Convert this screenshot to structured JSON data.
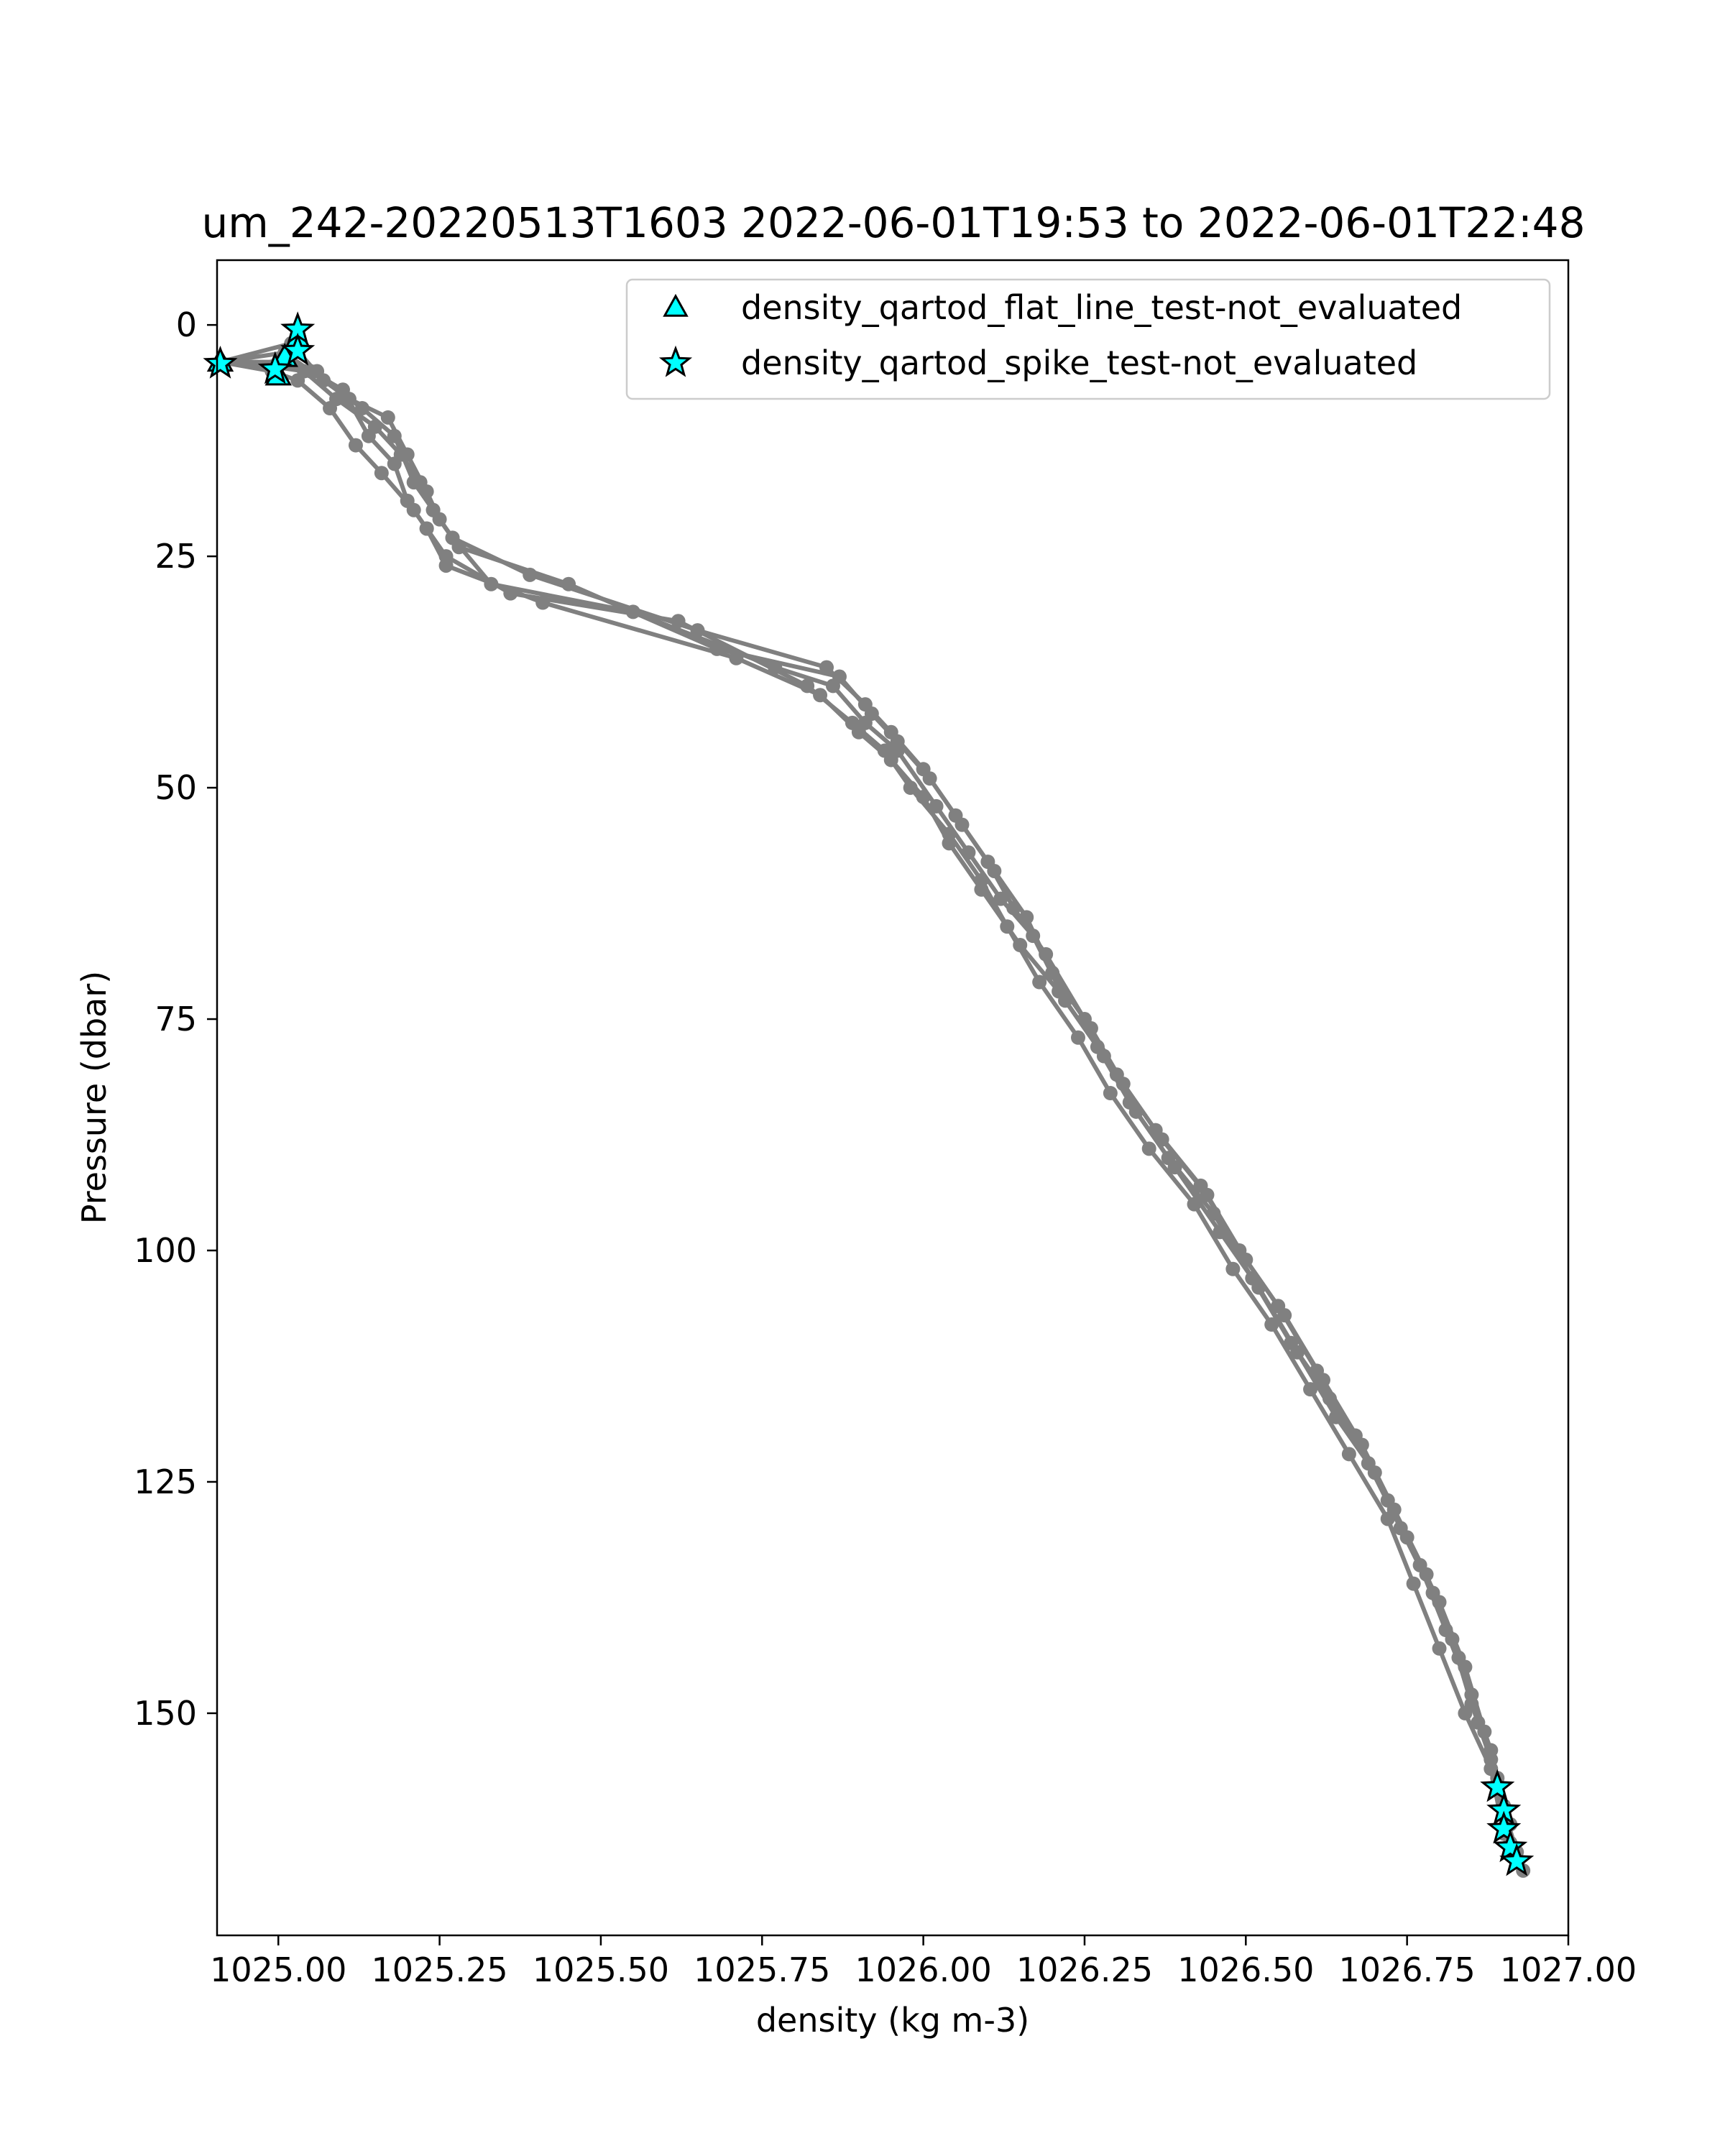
{
  "chart_data": {
    "type": "line",
    "title": "um_242-20220513T1603 2022-06-01T19:53 to 2022-06-01T22:48",
    "xlabel": "density (kg m-3)",
    "ylabel": "Pressure (dbar)",
    "xlim": [
      1024.905,
      1027.0
    ],
    "ylim": [
      174,
      -7
    ],
    "y_inverted": true,
    "x_ticks": [
      1025.0,
      1025.25,
      1025.5,
      1025.75,
      1026.0,
      1026.25,
      1026.5,
      1026.75,
      1027.0
    ],
    "x_tick_labels": [
      "1025.00",
      "1025.25",
      "1025.50",
      "1025.75",
      "1026.00",
      "1026.25",
      "1026.50",
      "1026.75",
      "1027.00"
    ],
    "y_ticks": [
      0,
      25,
      50,
      75,
      100,
      125,
      150
    ],
    "y_tick_labels": [
      "0",
      "25",
      "50",
      "75",
      "100",
      "125",
      "150"
    ],
    "grid": false,
    "legend_position": "upper-right",
    "colors": {
      "profile": "#808080",
      "flag_fill": "#00ffff",
      "flag_edge": "#000000"
    },
    "legend": [
      {
        "label": "density_qartod_flat_line_test-not_evaluated",
        "marker": "triangle"
      },
      {
        "label": "density_qartod_spike_test-not_evaluated",
        "marker": "star"
      }
    ],
    "series": [
      {
        "x": [
          1024.91,
          1024.99,
          1025.04,
          1025.09,
          1025.15,
          1025.19,
          1025.22,
          1025.24,
          1025.27,
          1025.39,
          1025.65,
          1025.85,
          1025.91,
          1025.95,
          1026.0,
          1026.05,
          1026.1,
          1026.14,
          1026.19,
          1026.25,
          1026.3,
          1026.36,
          1026.43,
          1026.49,
          1026.55,
          1026.61,
          1026.67,
          1026.72,
          1026.77,
          1026.81,
          1026.85,
          1026.88,
          1026.9,
          1026.92
        ],
        "y": [
          4,
          4.5,
          5,
          8,
          11,
          14,
          17,
          20,
          23,
          27,
          33,
          37,
          41,
          44,
          48,
          53,
          58,
          63,
          68,
          75,
          81,
          87,
          93,
          100,
          106,
          113,
          120,
          127,
          134,
          141,
          148,
          154,
          160,
          166
        ]
      },
      {
        "x": [
          1024.91,
          1025.0,
          1025.06,
          1025.11,
          1025.17,
          1025.2,
          1025.23,
          1025.25,
          1025.28,
          1025.45,
          1025.68,
          1025.87,
          1025.92,
          1025.96,
          1026.01,
          1026.06,
          1026.11,
          1026.16,
          1026.2,
          1026.26,
          1026.31,
          1026.37,
          1026.44,
          1026.5,
          1026.56,
          1026.62,
          1026.68,
          1026.73,
          1026.78,
          1026.82,
          1026.85,
          1026.88,
          1026.91
        ],
        "y": [
          4,
          4,
          5,
          8,
          10,
          14,
          18,
          21,
          24,
          28,
          35,
          38,
          42,
          45,
          49,
          54,
          59,
          64,
          70,
          76,
          82,
          88,
          94,
          101,
          107,
          114,
          121,
          128,
          135,
          142,
          149,
          155,
          162
        ]
      },
      {
        "x": [
          1024.91,
          1025.01,
          1025.05,
          1025.1,
          1025.14,
          1025.18,
          1025.2,
          1025.23,
          1025.26,
          1025.36,
          1025.62,
          1025.82,
          1025.89,
          1025.94,
          1025.98,
          1026.04,
          1026.09,
          1026.13,
          1026.18,
          1026.24,
          1026.29,
          1026.35,
          1026.42,
          1026.48,
          1026.54,
          1026.6,
          1026.66,
          1026.72,
          1026.76,
          1026.8,
          1026.84,
          1026.88,
          1026.9,
          1026.93
        ],
        "y": [
          4,
          3,
          5,
          7,
          12,
          15,
          19,
          22,
          25,
          29,
          32,
          39,
          43,
          46,
          50,
          55,
          60,
          65,
          71,
          77,
          83,
          89,
          95,
          102,
          108,
          115,
          122,
          129,
          136,
          143,
          150,
          156,
          163,
          167
        ]
      },
      {
        "x": [
          1024.91,
          1024.99,
          1025.03,
          1025.08,
          1025.12,
          1025.16,
          1025.21,
          1025.23,
          1025.26,
          1025.41,
          1025.71,
          1025.84,
          1025.9,
          1025.95,
          1026.0,
          1026.04,
          1026.09,
          1026.15,
          1026.21,
          1026.27,
          1026.32,
          1026.38,
          1026.45,
          1026.51,
          1026.57,
          1026.63,
          1026.69,
          1026.74,
          1026.79,
          1026.83,
          1026.86,
          1026.89,
          1026.91
        ],
        "y": [
          4,
          5,
          6,
          9,
          13,
          16,
          20,
          22,
          26,
          30,
          36,
          40,
          44,
          47,
          51,
          56,
          61,
          67,
          72,
          78,
          84,
          90,
          96,
          103,
          110,
          116,
          123,
          130,
          137,
          144,
          151,
          157,
          164
        ]
      },
      {
        "x": [
          1024.91,
          1025.02,
          1025.07,
          1025.13,
          1025.18,
          1025.21,
          1025.24,
          1025.27,
          1025.33,
          1025.55,
          1025.77,
          1025.86,
          1025.91,
          1025.96,
          1026.02,
          1026.07,
          1026.12,
          1026.17,
          1026.22,
          1026.28,
          1026.33,
          1026.39,
          1026.46,
          1026.52,
          1026.58,
          1026.64,
          1026.7,
          1026.75,
          1026.8,
          1026.84,
          1026.87,
          1026.89,
          1026.92
        ],
        "y": [
          4,
          2,
          6,
          9,
          12,
          17,
          20,
          23,
          28,
          31,
          37,
          39,
          43,
          46,
          52,
          57,
          62,
          66,
          73,
          79,
          85,
          91,
          98,
          104,
          111,
          118,
          124,
          131,
          138,
          145,
          152,
          158,
          165
        ]
      }
    ],
    "flat_line_test_points": [
      {
        "x": 1024.91,
        "y": 4
      },
      {
        "x": 1025.0,
        "y": 5.5
      },
      {
        "x": 1025.01,
        "y": 3.5
      },
      {
        "x": 1025.03,
        "y": 1.5
      }
    ],
    "spike_test_points": [
      {
        "x": 1025.03,
        "y": 0.5
      },
      {
        "x": 1024.91,
        "y": 4.2
      },
      {
        "x": 1024.995,
        "y": 4.8
      },
      {
        "x": 1025.03,
        "y": 2.8
      },
      {
        "x": 1026.89,
        "y": 158
      },
      {
        "x": 1026.9,
        "y": 160.5
      },
      {
        "x": 1026.9,
        "y": 162.5
      },
      {
        "x": 1026.91,
        "y": 164.5
      },
      {
        "x": 1026.92,
        "y": 166
      }
    ]
  }
}
